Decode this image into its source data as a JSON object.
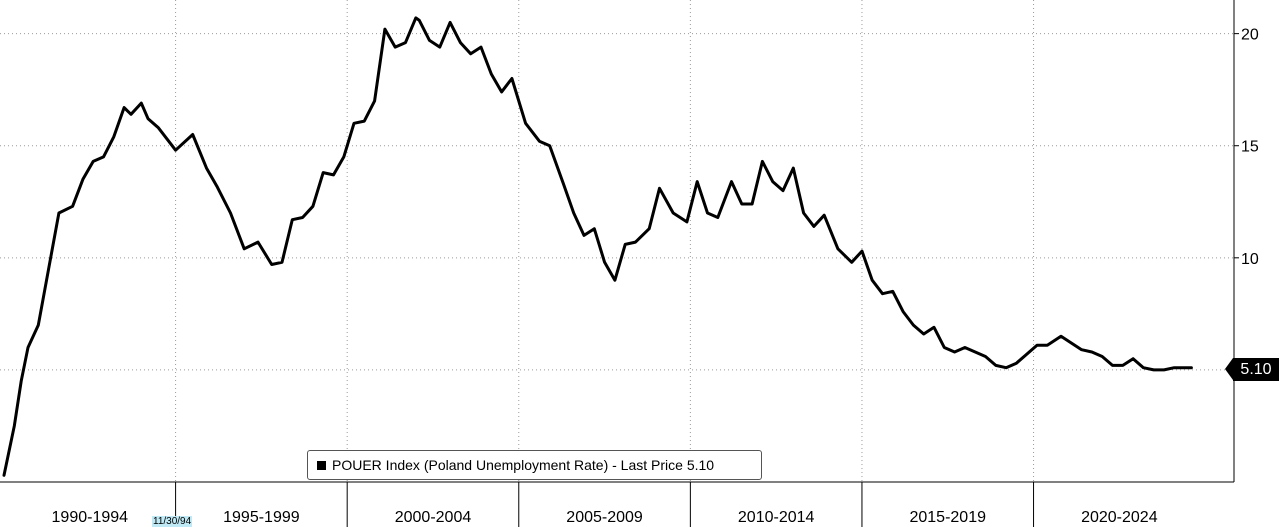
{
  "chart_data": {
    "type": "line",
    "title": "",
    "xlabel": "",
    "ylabel": "",
    "y_axis_position": "right",
    "y_ticks": [
      "10",
      "15",
      "20"
    ],
    "ylim": [
      0,
      21.5
    ],
    "xlim": [
      1990.0,
      2025.2
    ],
    "x_period_labels": [
      "1990-1994",
      "1995-1999",
      "2000-2004",
      "2005-2009",
      "2010-2014",
      "2015-2019",
      "2020-2024"
    ],
    "grid": true,
    "series": [
      {
        "name": "POUER Index (Poland Unemployment Rate)",
        "x": [
          1990.0,
          1990.3,
          1990.5,
          1990.7,
          1991.0,
          1991.3,
          1991.6,
          1992.0,
          1992.3,
          1992.6,
          1992.9,
          1993.2,
          1993.5,
          1993.7,
          1994.0,
          1994.2,
          1994.5,
          1994.8,
          1995.0,
          1995.5,
          1995.9,
          1996.2,
          1996.6,
          1997.0,
          1997.4,
          1997.8,
          1998.1,
          1998.4,
          1998.7,
          1999.0,
          1999.3,
          1999.6,
          1999.9,
          2000.2,
          2000.5,
          2000.8,
          2001.1,
          2001.4,
          2001.7,
          2002.0,
          2002.1,
          2002.4,
          2002.7,
          2003.0,
          2003.3,
          2003.6,
          2003.9,
          2004.2,
          2004.5,
          2004.8,
          2005.2,
          2005.6,
          2005.9,
          2006.3,
          2006.6,
          2006.9,
          2007.2,
          2007.5,
          2007.8,
          2008.1,
          2008.4,
          2008.8,
          2009.1,
          2009.5,
          2009.9,
          2010.2,
          2010.5,
          2010.8,
          2011.2,
          2011.5,
          2011.8,
          2012.1,
          2012.4,
          2012.7,
          2013.0,
          2013.3,
          2013.6,
          2013.9,
          2014.3,
          2014.7,
          2015.0,
          2015.3,
          2015.6,
          2015.9,
          2016.2,
          2016.5,
          2016.8,
          2017.1,
          2017.4,
          2017.7,
          2018.0,
          2018.3,
          2018.6,
          2018.9,
          2019.2,
          2019.5,
          2019.8,
          2020.1,
          2020.4,
          2020.8,
          2021.1,
          2021.4,
          2021.7,
          2022.0,
          2022.3,
          2022.6,
          2022.9,
          2023.2,
          2023.5,
          2023.8,
          2024.1,
          2024.4,
          2024.6
        ],
        "values": [
          0.3,
          2.5,
          4.5,
          6.0,
          7.0,
          9.5,
          12.0,
          12.3,
          13.5,
          14.3,
          14.5,
          15.4,
          16.7,
          16.4,
          16.9,
          16.2,
          15.8,
          15.2,
          14.8,
          15.5,
          14.0,
          13.2,
          12.0,
          10.4,
          10.7,
          9.7,
          9.8,
          11.7,
          11.8,
          12.3,
          13.8,
          13.7,
          14.5,
          16.0,
          16.1,
          17.0,
          20.2,
          19.4,
          19.6,
          20.7,
          20.6,
          19.7,
          19.4,
          20.5,
          19.6,
          19.1,
          19.4,
          18.2,
          17.4,
          18.0,
          16.0,
          15.2,
          15.0,
          13.3,
          12.0,
          11.0,
          11.3,
          9.8,
          9.0,
          10.6,
          10.7,
          11.3,
          13.1,
          12.0,
          11.6,
          13.4,
          12.0,
          11.8,
          13.4,
          12.4,
          12.4,
          14.3,
          13.4,
          13.0,
          14.0,
          12.0,
          11.4,
          11.9,
          10.4,
          9.8,
          10.3,
          9.0,
          8.4,
          8.5,
          7.6,
          7.0,
          6.6,
          6.9,
          6.0,
          5.8,
          6.0,
          5.8,
          5.6,
          5.2,
          5.1,
          5.3,
          5.7,
          6.1,
          6.1,
          6.5,
          6.2,
          5.9,
          5.8,
          5.6,
          5.2,
          5.2,
          5.5,
          5.1,
          5.0,
          5.0,
          5.1,
          5.1,
          5.1
        ]
      }
    ]
  },
  "legend": {
    "label": "POUER Index (Poland Unemployment Rate) - Last Price 5.10"
  },
  "last_price": {
    "value": "5.10"
  },
  "date_marker": {
    "label": "11/30/94"
  }
}
